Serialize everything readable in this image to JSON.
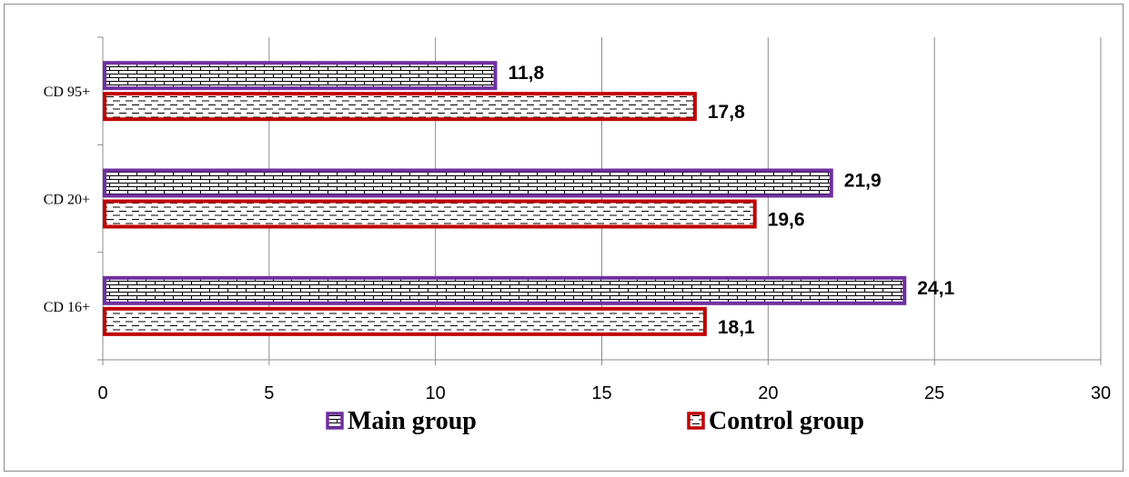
{
  "chart_data": {
    "type": "bar",
    "orientation": "horizontal",
    "title": "",
    "xlabel": "",
    "ylabel": "",
    "categories": [
      "CD 95+",
      "CD 20+",
      "CD 16+"
    ],
    "series": [
      {
        "name": "Main group",
        "values": [
          11.8,
          21.9,
          24.1
        ],
        "labels": [
          "11,8",
          "21,9",
          "24,1"
        ],
        "color": "#7030a0",
        "pattern": "bricks"
      },
      {
        "name": "Control group",
        "values": [
          17.8,
          19.6,
          18.1
        ],
        "labels": [
          "17,8",
          "19,6",
          "18,1"
        ],
        "color": "#c00000",
        "pattern": "dashed-horizontal"
      }
    ],
    "xlim": [
      0,
      30
    ],
    "xticks": [
      0,
      5,
      10,
      15,
      20,
      25,
      30
    ],
    "xtick_labels": [
      "0",
      "5",
      "10",
      "15",
      "20",
      "25",
      "30"
    ],
    "grid": "vertical",
    "legend": "bottom",
    "gridline_color": "#8c8c8c"
  }
}
